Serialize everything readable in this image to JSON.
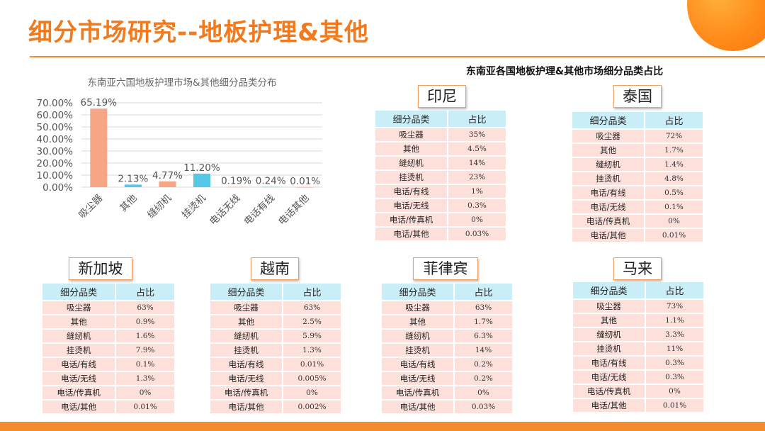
{
  "header": {
    "title": "细分市场研究--地板护理&其他"
  },
  "chart_data": {
    "type": "bar",
    "title": "东南亚六国地板护理市场&其他细分品类分布",
    "categories": [
      "吸尘器",
      "其他",
      "缝纫机",
      "挂烫机",
      "电话无线",
      "电话有线",
      "电话其他"
    ],
    "values": [
      65.19,
      2.13,
      4.77,
      11.2,
      0.19,
      0.24,
      0.01
    ],
    "data_labels": [
      "65.19%",
      "2.13%",
      "4.77%",
      "11.20%",
      "0.19%",
      "0.24%",
      "0.01%"
    ],
    "bar_colors": [
      "#f5a785",
      "#55c8e8",
      "#f5a785",
      "#55c8e8",
      "#f5a785",
      "#55c8e8",
      "#f5a785"
    ],
    "yticks": [
      "0.00%",
      "10.00%",
      "20.00%",
      "30.00%",
      "40.00%",
      "50.00%",
      "60.00%",
      "70.00%"
    ],
    "ylim": [
      0,
      70
    ],
    "xlabel": "",
    "ylabel": "",
    "grid": true
  },
  "panel": {
    "heading": "东南亚各国地板护理&其他市场细分品类占比"
  },
  "table_headers": {
    "category": "细分品类",
    "share": "占比"
  },
  "countries": [
    {
      "name": "印尼",
      "rows": [
        [
          "吸尘器",
          "35%"
        ],
        [
          "其他",
          "4.5%"
        ],
        [
          "缝纫机",
          "14%"
        ],
        [
          "挂烫机",
          "23%"
        ],
        [
          "电话/有线",
          "1%"
        ],
        [
          "电话/无线",
          "0.3%"
        ],
        [
          "电话/传真机",
          "0%"
        ],
        [
          "电话/其他",
          "0.03%"
        ]
      ]
    },
    {
      "name": "泰国",
      "rows": [
        [
          "吸尘器",
          "72%"
        ],
        [
          "其他",
          "1.7%"
        ],
        [
          "缝纫机",
          "1.4%"
        ],
        [
          "挂烫机",
          "4.8%"
        ],
        [
          "电话/有线",
          "0.5%"
        ],
        [
          "电话/无线",
          "0.1%"
        ],
        [
          "电话/传真机",
          "0%"
        ],
        [
          "电话/其他",
          "0.01%"
        ]
      ]
    },
    {
      "name": "新加坡",
      "rows": [
        [
          "吸尘器",
          "63%"
        ],
        [
          "其他",
          "0.9%"
        ],
        [
          "缝纫机",
          "1.6%"
        ],
        [
          "挂烫机",
          "7.9%"
        ],
        [
          "电话/有线",
          "0.1%"
        ],
        [
          "电话/无线",
          "1.3%"
        ],
        [
          "电话/传真机",
          "0%"
        ],
        [
          "电话/其他",
          "0.01%"
        ]
      ]
    },
    {
      "name": "越南",
      "rows": [
        [
          "吸尘器",
          "63%"
        ],
        [
          "其他",
          "2.5%"
        ],
        [
          "缝纫机",
          "5.9%"
        ],
        [
          "挂烫机",
          "1.3%"
        ],
        [
          "电话/有线",
          "0.01%"
        ],
        [
          "电话/无线",
          "0.005%"
        ],
        [
          "电话/传真机",
          "0%"
        ],
        [
          "电话/其他",
          "0.002%"
        ]
      ]
    },
    {
      "name": "菲律宾",
      "rows": [
        [
          "吸尘器",
          "63%"
        ],
        [
          "其他",
          "1.7%"
        ],
        [
          "缝纫机",
          "6.3%"
        ],
        [
          "挂烫机",
          "14%"
        ],
        [
          "电话/有线",
          "0.2%"
        ],
        [
          "电话/无线",
          "0.2%"
        ],
        [
          "电话/传真机",
          "0%"
        ],
        [
          "电话/其他",
          "0.03%"
        ]
      ]
    },
    {
      "name": "马来",
      "rows": [
        [
          "吸尘器",
          "73%"
        ],
        [
          "其他",
          "1.1%"
        ],
        [
          "缝纫机",
          "3.3%"
        ],
        [
          "挂烫机",
          "11%"
        ],
        [
          "电话/有线",
          "0.3%"
        ],
        [
          "电话/无线",
          "0.3%"
        ],
        [
          "电话/传真机",
          "0%"
        ],
        [
          "电话/其他",
          "0.01%"
        ]
      ]
    }
  ]
}
